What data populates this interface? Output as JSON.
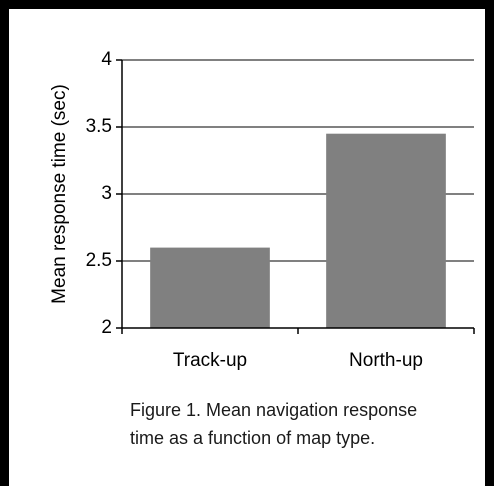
{
  "chart_data": {
    "type": "bar",
    "categories": [
      "Track-up",
      "North-up"
    ],
    "values": [
      2.6,
      3.45
    ],
    "title": "",
    "xlabel": "",
    "ylabel": "Mean response time (sec)",
    "ylim": [
      2,
      4
    ],
    "yticks": [
      "2",
      "2.5",
      "3",
      "3.5",
      "4"
    ],
    "grid": true,
    "bar_color": "#808080"
  },
  "caption": {
    "line1": "Figure 1. Mean navigation response",
    "line2": "time as a function of map type."
  }
}
